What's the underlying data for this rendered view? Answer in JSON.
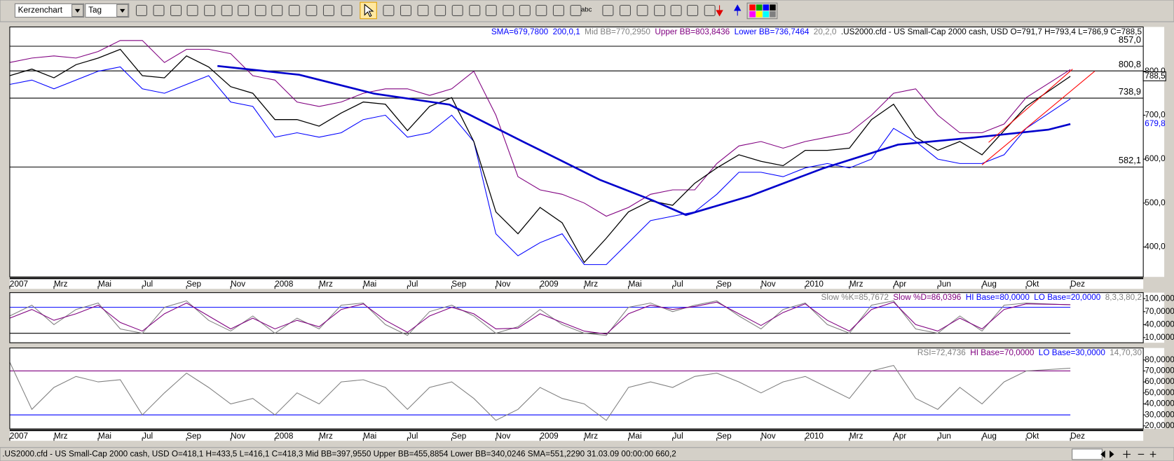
{
  "toolbar": {
    "chart_style": "Kerzenchart",
    "period": "Tag",
    "text_tool": "abc"
  },
  "chart_data": [
    {
      "type": "line",
      "header": [
        {
          "text": "SMA=679,7800",
          "color": "#0000ff"
        },
        {
          "text": "200,0,1",
          "color": "#0000ff"
        },
        {
          "text": "Mid BB=770,2950",
          "color": "#808080"
        },
        {
          "text": "Upper BB=803,8436",
          "color": "#800080"
        },
        {
          "text": "Lower BB=736,7464",
          "color": "#0000ff"
        },
        {
          "text": "20,2,0",
          "color": "#808080"
        },
        {
          "text": ".US2000.cfd - US Small-Cap 2000 cash, USD O=791,7 H=793,4 L=786,9 C=788,5",
          "color": "#000000"
        }
      ],
      "xlim": [
        0,
        51.3
      ],
      "ylim": [
        331.9,
        900.9
      ],
      "xticks": [
        {
          "value": 0,
          "label": "2007"
        },
        {
          "value": 2,
          "label": "Mrz"
        },
        {
          "value": 4,
          "label": "Mai"
        },
        {
          "value": 6,
          "label": "Jul"
        },
        {
          "value": 8,
          "label": "Sep"
        },
        {
          "value": 10,
          "label": "Nov"
        },
        {
          "value": 12,
          "label": "2008"
        },
        {
          "value": 14,
          "label": "Mrz"
        },
        {
          "value": 16,
          "label": "Mai"
        },
        {
          "value": 18,
          "label": "Jul"
        },
        {
          "value": 20,
          "label": "Sep"
        },
        {
          "value": 22,
          "label": "Nov"
        },
        {
          "value": 24,
          "label": "2009"
        },
        {
          "value": 26,
          "label": "Mrz"
        },
        {
          "value": 28,
          "label": "Mai"
        },
        {
          "value": 30,
          "label": "Jul"
        },
        {
          "value": 32,
          "label": "Sep"
        },
        {
          "value": 34,
          "label": "Nov"
        },
        {
          "value": 36,
          "label": "2010"
        },
        {
          "value": 38,
          "label": "Mrz"
        },
        {
          "value": 40,
          "label": "Apr"
        },
        {
          "value": 42,
          "label": "Jun"
        },
        {
          "value": 44,
          "label": "Aug"
        },
        {
          "value": 46,
          "label": "Okt"
        },
        {
          "value": 48,
          "label": "Dez"
        }
      ],
      "yticks": [
        {
          "value": 400,
          "label": "400,0"
        },
        {
          "value": 500,
          "label": "500,0"
        },
        {
          "value": 600,
          "label": "600,0"
        },
        {
          "value": 700,
          "label": "700,0"
        },
        {
          "value": 800,
          "label": "800,0"
        }
      ],
      "levels": [
        {
          "value": 857.0,
          "label": "857,0"
        },
        {
          "value": 800.8,
          "label": "800,8"
        },
        {
          "value": 738.9,
          "label": "738,9"
        },
        {
          "value": 582.1,
          "label": "582,1"
        }
      ],
      "last_labels": [
        {
          "value": 788.5,
          "label": "788,5",
          "color": "#000000"
        },
        {
          "value": 679.8,
          "label": "679,8",
          "color": "#0000ff"
        }
      ],
      "series": [
        {
          "color": "#800080",
          "width": 1,
          "x": [
            0,
            1,
            2,
            3,
            4,
            5,
            6,
            7,
            8,
            9,
            10,
            11,
            12,
            13,
            14,
            15,
            16,
            17,
            18,
            19,
            20,
            21,
            22,
            23,
            24,
            25,
            26,
            27,
            28,
            29,
            30,
            31,
            32,
            33,
            34,
            35,
            36,
            37,
            38,
            39,
            40,
            41,
            42,
            43,
            44,
            45,
            46,
            48
          ],
          "values": [
            820,
            830,
            835,
            830,
            845,
            870,
            870,
            820,
            850,
            850,
            840,
            790,
            780,
            730,
            720,
            730,
            750,
            760,
            760,
            745,
            760,
            800,
            700,
            560,
            530,
            520,
            500,
            470,
            490,
            520,
            530,
            530,
            590,
            630,
            640,
            625,
            640,
            650,
            660,
            700,
            750,
            760,
            700,
            660,
            660,
            680,
            740,
            804
          ]
        },
        {
          "color": "#0000ff",
          "width": 1,
          "x": [
            0,
            1,
            2,
            3,
            4,
            5,
            6,
            7,
            8,
            9,
            10,
            11,
            12,
            13,
            14,
            15,
            16,
            17,
            18,
            19,
            20,
            21,
            22,
            23,
            24,
            25,
            26,
            27,
            28,
            29,
            30,
            31,
            32,
            33,
            34,
            35,
            36,
            37,
            38,
            39,
            40,
            41,
            42,
            43,
            44,
            45,
            46,
            48
          ],
          "values": [
            770,
            780,
            760,
            780,
            800,
            810,
            760,
            750,
            770,
            790,
            730,
            720,
            650,
            660,
            650,
            660,
            690,
            700,
            650,
            660,
            700,
            640,
            430,
            380,
            410,
            430,
            360,
            360,
            410,
            460,
            470,
            480,
            520,
            570,
            570,
            560,
            580,
            590,
            580,
            600,
            670,
            640,
            600,
            590,
            590,
            610,
            670,
            737
          ]
        },
        {
          "color": "#000000",
          "width": 1.2,
          "x": [
            0,
            1,
            2,
            3,
            4,
            5,
            6,
            7,
            8,
            9,
            10,
            11,
            12,
            13,
            14,
            15,
            16,
            17,
            18,
            19,
            20,
            21,
            22,
            23,
            24,
            25,
            26,
            27,
            28,
            29,
            30,
            31,
            32,
            33,
            34,
            35,
            36,
            37,
            38,
            39,
            40,
            41,
            42,
            43,
            44,
            45,
            46,
            48
          ],
          "values": [
            790,
            805,
            785,
            815,
            830,
            850,
            790,
            785,
            835,
            810,
            765,
            750,
            690,
            690,
            675,
            705,
            730,
            725,
            665,
            720,
            740,
            640,
            480,
            430,
            490,
            455,
            365,
            420,
            480,
            505,
            495,
            545,
            580,
            610,
            595,
            585,
            620,
            620,
            625,
            690,
            725,
            650,
            620,
            640,
            610,
            665,
            720,
            788.5
          ]
        },
        {
          "color": "#0000cc",
          "width": 2.5,
          "x": [
            9.4,
            13.1,
            16.5,
            19.9,
            23.3,
            26.7,
            29.1,
            30.6,
            33.5,
            36.8,
            40.2,
            43.6,
            47,
            48
          ],
          "values": [
            812,
            792,
            749,
            724,
            638,
            553,
            506,
            473,
            516,
            579,
            633,
            649,
            667,
            679.78
          ]
        },
        {
          "color": "#ff0000",
          "width": 1,
          "x": [
            44.3,
            48.1
          ],
          "values": [
            638,
            805
          ]
        },
        {
          "color": "#ff0000",
          "width": 1,
          "x": [
            44.0,
            49.1
          ],
          "values": [
            587,
            800
          ]
        }
      ]
    },
    {
      "type": "line",
      "header": [
        {
          "text": "Slow %K=85,7672",
          "color": "#808080"
        },
        {
          "text": "Slow %D=86,0396",
          "color": "#800080"
        },
        {
          "text": "HI Base=80,0000",
          "color": "#0000ff"
        },
        {
          "text": "LO Base=20,0000",
          "color": "#0000ff"
        },
        {
          "text": "8,3,3,80,2",
          "color": "#808080"
        }
      ],
      "xlim": [
        0,
        51.3
      ],
      "ylim": [
        -2,
        114
      ],
      "yticks": [
        {
          "value": 10,
          "label": "10,0000"
        },
        {
          "value": 40,
          "label": "40,0000"
        },
        {
          "value": 70,
          "label": "70,0000"
        },
        {
          "value": 100,
          "label": "100,0000"
        }
      ],
      "base_lines": [
        {
          "value": 80,
          "color": "#0000ff"
        },
        {
          "value": 20,
          "color": "#000000"
        }
      ],
      "series": [
        {
          "color": "#808080",
          "width": 1,
          "x": [
            0,
            1,
            2,
            3,
            4,
            5,
            6,
            7,
            8,
            9,
            10,
            11,
            12,
            13,
            14,
            15,
            16,
            17,
            18,
            19,
            20,
            21,
            22,
            23,
            24,
            25,
            26,
            27,
            28,
            29,
            30,
            31,
            32,
            33,
            34,
            35,
            36,
            37,
            38,
            39,
            40,
            41,
            42,
            43,
            44,
            45,
            46,
            48
          ],
          "values": [
            60,
            85,
            40,
            75,
            90,
            30,
            20,
            80,
            95,
            50,
            25,
            60,
            20,
            55,
            30,
            85,
            90,
            40,
            15,
            70,
            85,
            60,
            20,
            35,
            75,
            40,
            20,
            15,
            80,
            90,
            70,
            85,
            95,
            60,
            30,
            75,
            90,
            40,
            20,
            85,
            95,
            30,
            20,
            60,
            25,
            85,
            90,
            85.77
          ]
        },
        {
          "color": "#800080",
          "width": 1,
          "x": [
            0,
            1,
            2,
            3,
            4,
            5,
            6,
            7,
            8,
            9,
            10,
            11,
            12,
            13,
            14,
            15,
            16,
            17,
            18,
            19,
            20,
            21,
            22,
            23,
            24,
            25,
            26,
            27,
            28,
            29,
            30,
            31,
            32,
            33,
            34,
            35,
            36,
            37,
            38,
            39,
            40,
            41,
            42,
            43,
            44,
            45,
            46,
            48
          ],
          "values": [
            55,
            75,
            50,
            65,
            85,
            45,
            25,
            65,
            90,
            60,
            30,
            55,
            30,
            50,
            35,
            75,
            88,
            50,
            22,
            60,
            80,
            65,
            30,
            32,
            65,
            45,
            25,
            18,
            65,
            85,
            75,
            82,
            92,
            65,
            38,
            68,
            88,
            50,
            25,
            75,
            92,
            40,
            25,
            55,
            30,
            75,
            88,
            86.04
          ]
        }
      ]
    },
    {
      "type": "line",
      "header": [
        {
          "text": "RSI=72,4736",
          "color": "#808080"
        },
        {
          "text": "HI Base=70,0000",
          "color": "#800080"
        },
        {
          "text": "LO Base=30,0000",
          "color": "#0000ff"
        },
        {
          "text": "14,70,30",
          "color": "#808080"
        }
      ],
      "xlim": [
        0,
        51.3
      ],
      "ylim": [
        17.3,
        90.9
      ],
      "xticks": [
        {
          "value": 0,
          "label": "2007"
        },
        {
          "value": 2,
          "label": "Mrz"
        },
        {
          "value": 4,
          "label": "Mai"
        },
        {
          "value": 6,
          "label": "Jul"
        },
        {
          "value": 8,
          "label": "Sep"
        },
        {
          "value": 10,
          "label": "Nov"
        },
        {
          "value": 12,
          "label": "2008"
        },
        {
          "value": 14,
          "label": "Mrz"
        },
        {
          "value": 16,
          "label": "Mai"
        },
        {
          "value": 18,
          "label": "Jul"
        },
        {
          "value": 20,
          "label": "Sep"
        },
        {
          "value": 22,
          "label": "Nov"
        },
        {
          "value": 24,
          "label": "2009"
        },
        {
          "value": 26,
          "label": "Mrz"
        },
        {
          "value": 28,
          "label": "Mai"
        },
        {
          "value": 30,
          "label": "Jul"
        },
        {
          "value": 32,
          "label": "Sep"
        },
        {
          "value": 34,
          "label": "Nov"
        },
        {
          "value": 36,
          "label": "2010"
        },
        {
          "value": 38,
          "label": "Mrz"
        },
        {
          "value": 40,
          "label": "Apr"
        },
        {
          "value": 42,
          "label": "Jun"
        },
        {
          "value": 44,
          "label": "Aug"
        },
        {
          "value": 46,
          "label": "Okt"
        },
        {
          "value": 48,
          "label": "Dez"
        }
      ],
      "yticks": [
        {
          "value": 20,
          "label": "20,0000"
        },
        {
          "value": 30,
          "label": "30,0000"
        },
        {
          "value": 40,
          "label": "40,0000"
        },
        {
          "value": 50,
          "label": "50,0000"
        },
        {
          "value": 60,
          "label": "60,0000"
        },
        {
          "value": 70,
          "label": "70,0000"
        },
        {
          "value": 80,
          "label": "80,0000"
        }
      ],
      "base_lines": [
        {
          "value": 70,
          "color": "#800080"
        },
        {
          "value": 30,
          "color": "#0000ff"
        }
      ],
      "series": [
        {
          "color": "#808080",
          "width": 1,
          "x": [
            0,
            1,
            2,
            3,
            4,
            5,
            6,
            7,
            8,
            9,
            10,
            11,
            12,
            13,
            14,
            15,
            16,
            17,
            18,
            19,
            20,
            21,
            22,
            23,
            24,
            25,
            26,
            27,
            28,
            29,
            30,
            31,
            32,
            33,
            34,
            35,
            36,
            37,
            38,
            39,
            40,
            41,
            42,
            43,
            44,
            45,
            46,
            48
          ],
          "values": [
            78,
            35,
            55,
            65,
            60,
            62,
            30,
            50,
            68,
            55,
            40,
            45,
            30,
            50,
            40,
            60,
            62,
            55,
            35,
            55,
            60,
            45,
            25,
            35,
            55,
            45,
            40,
            25,
            55,
            60,
            55,
            65,
            68,
            60,
            50,
            60,
            65,
            55,
            45,
            70,
            75,
            45,
            35,
            55,
            40,
            60,
            70,
            72.47
          ]
        }
      ]
    }
  ],
  "status_bar": ".US2000.cfd - US Small-Cap 2000 cash, USD O=418,1 H=433,5 L=416,1 C=418,3 Mid BB=397,9550 Upper BB=455,8854 Lower BB=340,0246 SMA=551,2290  31.03.09 00:00:00 660,2"
}
